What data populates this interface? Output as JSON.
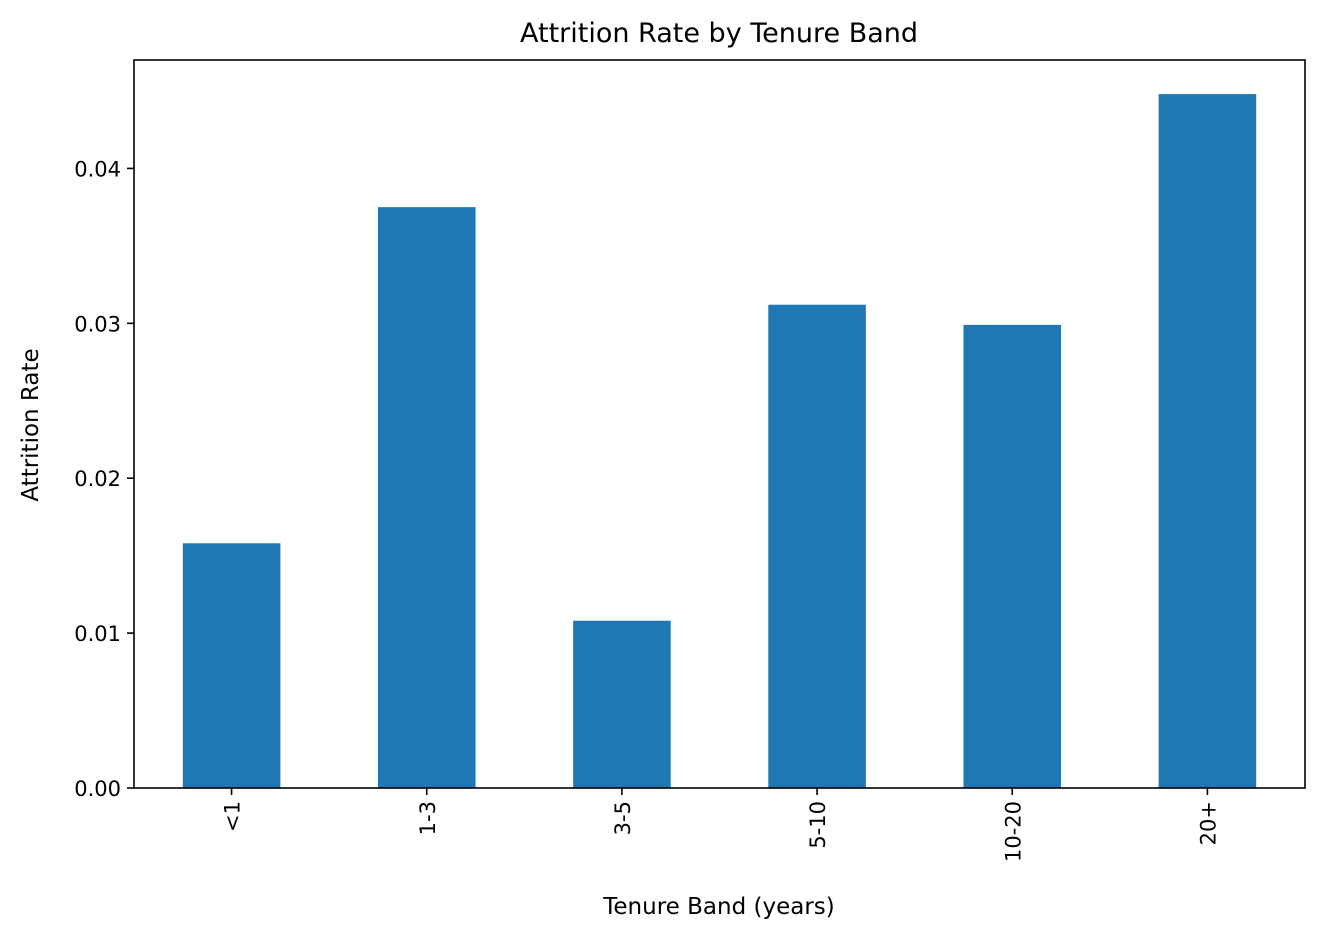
{
  "chart_data": {
    "type": "bar",
    "title": "Attrition Rate by Tenure Band",
    "xlabel": "Tenure Band (years)",
    "ylabel": "Attrition Rate",
    "categories": [
      "<1",
      "1-3",
      "3-5",
      "5-10",
      "10-20",
      "20+"
    ],
    "values": [
      0.0158,
      0.0375,
      0.0108,
      0.0312,
      0.0299,
      0.0448
    ],
    "ylim": [
      0,
      0.047
    ],
    "yticks": [
      0,
      0.01,
      0.02,
      0.03,
      0.04
    ],
    "ytick_labels": [
      "0.00",
      "0.01",
      "0.02",
      "0.03",
      "0.04"
    ],
    "grid": false,
    "legend": "none",
    "bar_color": "#1f77b4",
    "tick_label_rotation": "vertical"
  }
}
